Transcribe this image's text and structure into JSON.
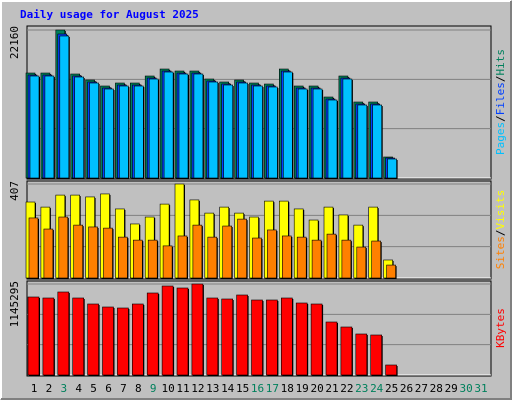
{
  "chart_data": [
    {
      "type": "bar",
      "title": "Daily usage for August 2025",
      "legend_separator": "/",
      "ylim": [
        0,
        22160
      ],
      "yticks": [
        22160
      ],
      "series": [
        {
          "name": "Hits",
          "color": "#00805c",
          "values": [
            15719,
            15719,
            22160,
            15570,
            14671,
            13773,
            14222,
            14222,
            15270,
            16318,
            16018,
            16018,
            14821,
            14372,
            14671,
            14222,
            14072,
            16318,
            13773,
            13773,
            12126,
            15270,
            11378,
            11378,
            3144,
            0,
            0,
            0,
            0,
            0,
            0
          ]
        },
        {
          "name": "Files",
          "color": "#0040ff",
          "values": [
            15420,
            15420,
            21560,
            15270,
            14372,
            13474,
            13923,
            13923,
            14970,
            16018,
            15719,
            15719,
            14522,
            14072,
            14372,
            13923,
            13773,
            16018,
            13474,
            13474,
            11827,
            14970,
            11078,
            11078,
            2994,
            0,
            0,
            0,
            0,
            0,
            0
          ]
        },
        {
          "name": "Pages",
          "color": "#00c0ff",
          "values": [
            15270,
            15270,
            21261,
            15120,
            14222,
            13324,
            13773,
            13773,
            14821,
            15868,
            15570,
            15570,
            14372,
            13923,
            14222,
            13773,
            13624,
            15868,
            13324,
            13324,
            11677,
            14821,
            10929,
            10929,
            2844,
            0,
            0,
            0,
            0,
            0,
            0
          ]
        }
      ]
    },
    {
      "type": "bar",
      "ylim": [
        0,
        407
      ],
      "yticks": [
        407
      ],
      "series": [
        {
          "name": "Visits",
          "color": "#ffff00",
          "values": [
            329,
            307,
            359,
            359,
            351,
            364,
            299,
            234,
            264,
            320,
            407,
            338,
            281,
            307,
            281,
            264,
            333,
            333,
            299,
            251,
            307,
            273,
            229,
            307,
            78,
            0,
            0,
            0,
            0,
            0,
            0
          ]
        },
        {
          "name": "Sites",
          "color": "#ff8000",
          "values": [
            260,
            212,
            264,
            229,
            221,
            216,
            177,
            164,
            164,
            139,
            182,
            229,
            177,
            225,
            255,
            173,
            208,
            182,
            177,
            164,
            190,
            164,
            134,
            160,
            56,
            0,
            0,
            0,
            0,
            0,
            0
          ]
        }
      ]
    },
    {
      "type": "bar",
      "ylim": [
        0,
        1145295
      ],
      "yticks": [
        1145295
      ],
      "categories": [
        "1",
        "2",
        "3",
        "4",
        "5",
        "6",
        "7",
        "8",
        "9",
        "10",
        "11",
        "12",
        "13",
        "14",
        "15",
        "16",
        "17",
        "18",
        "19",
        "20",
        "21",
        "22",
        "23",
        "24",
        "25",
        "26",
        "27",
        "28",
        "29",
        "30",
        "31"
      ],
      "category_colors": [
        "#000000",
        "#000000",
        "#00805c",
        "#000000",
        "#000000",
        "#000000",
        "#000000",
        "#000000",
        "#00805c",
        "#000000",
        "#000000",
        "#000000",
        "#000000",
        "#000000",
        "#000000",
        "#00805c",
        "#00805c",
        "#000000",
        "#000000",
        "#000000",
        "#000000",
        "#000000",
        "#00805c",
        "#00805c",
        "#000000",
        "#000000",
        "#000000",
        "#000000",
        "#000000",
        "#00805c",
        "#00805c"
      ],
      "series": [
        {
          "name": "KBytes",
          "color": "#ff0000",
          "values": [
            981708,
            969122,
            1044638,
            969122,
            893606,
            855848,
            843262,
            893606,
            1032052,
            1120154,
            1094982,
            1145295,
            969122,
            956536,
            1006880,
            943950,
            943950,
            969122,
            906192,
            893606,
            667058,
            604128,
            516026,
            503440,
            125860,
            0,
            0,
            0,
            0,
            0,
            0
          ]
        }
      ]
    }
  ]
}
